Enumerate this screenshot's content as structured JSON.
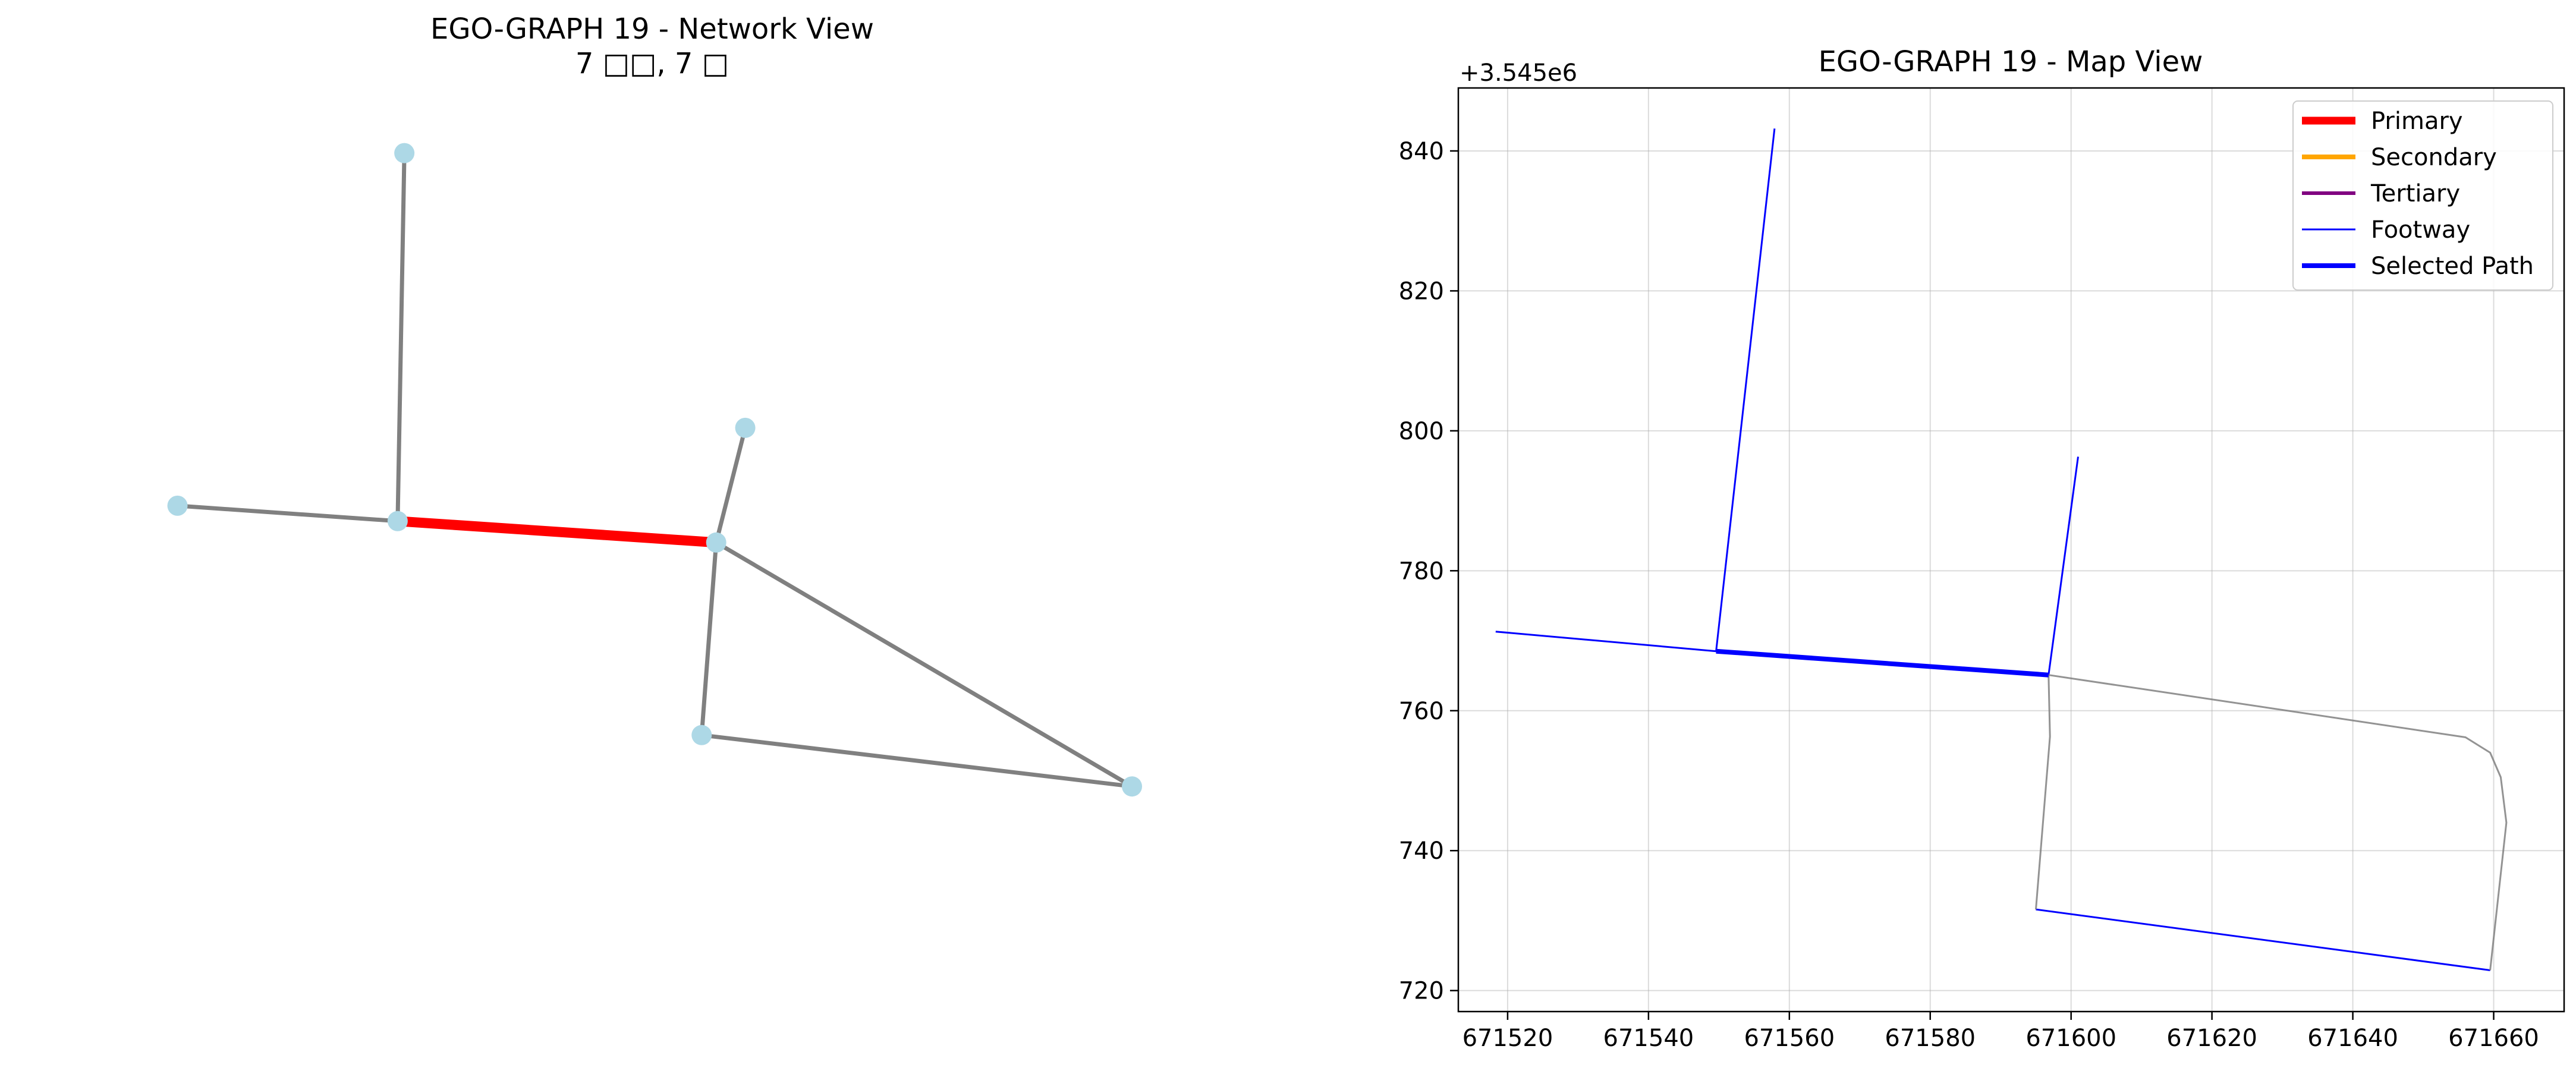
{
  "chart_data": [
    {
      "type": "network",
      "title": "EGO-GRAPH 19 - Network View",
      "subtitle": "7 □□, 7 □",
      "nodes": [
        {
          "id": "n1",
          "x": 0.079,
          "y": 0.548
        },
        {
          "id": "n2",
          "x": 0.276,
          "y": 0.53
        },
        {
          "id": "n3",
          "x": 0.282,
          "y": 0.96
        },
        {
          "id": "n4",
          "x": 0.561,
          "y": 0.505
        },
        {
          "id": "n5",
          "x": 0.587,
          "y": 0.639
        },
        {
          "id": "n6",
          "x": 0.548,
          "y": 0.28
        },
        {
          "id": "n7",
          "x": 0.933,
          "y": 0.22
        }
      ],
      "edges": [
        {
          "from": "n1",
          "to": "n2",
          "highlight": false
        },
        {
          "from": "n2",
          "to": "n3",
          "highlight": false
        },
        {
          "from": "n2",
          "to": "n4",
          "highlight": true
        },
        {
          "from": "n4",
          "to": "n5",
          "highlight": false
        },
        {
          "from": "n4",
          "to": "n6",
          "highlight": false
        },
        {
          "from": "n4",
          "to": "n7",
          "highlight": false
        },
        {
          "from": "n6",
          "to": "n7",
          "highlight": false
        }
      ],
      "node_color": "#add8e6",
      "edge_color": "#808080",
      "highlight_color": "#ff0000"
    },
    {
      "type": "line",
      "title": "EGO-GRAPH 19 - Map View",
      "offset_label": "+3.545e6",
      "xlim": [
        671513,
        671670
      ],
      "ylim": [
        717,
        849
      ],
      "xticks": [
        671520,
        671540,
        671560,
        671580,
        671600,
        671620,
        671640,
        671660
      ],
      "yticks": [
        720,
        740,
        760,
        780,
        800,
        820,
        840
      ],
      "xtick_labels": [
        "671520",
        "671540",
        "671560",
        "671580",
        "671600",
        "671620",
        "671640",
        "671660"
      ],
      "ytick_labels": [
        "720",
        "740",
        "760",
        "780",
        "800",
        "820",
        "840"
      ],
      "grid": true,
      "legend_position": "top-right",
      "legend": [
        {
          "label": "Primary",
          "color": "#ff0000",
          "width": 4
        },
        {
          "label": "Secondary",
          "color": "#ffa500",
          "width": 3
        },
        {
          "label": "Tertiary",
          "color": "#800080",
          "width": 2
        },
        {
          "label": "Footway",
          "color": "#0000ff",
          "width": 1
        },
        {
          "label": "Selected Path",
          "color": "#0000ff",
          "width": 3
        }
      ],
      "series": [
        {
          "kind": "footway",
          "color": "#0000ff",
          "width": 1,
          "points": [
            [
              671518.3,
              771.3
            ],
            [
              671549.6,
              768.5
            ]
          ]
        },
        {
          "kind": "footway",
          "color": "#0000ff",
          "width": 1,
          "points": [
            [
              671549.6,
              768.5
            ],
            [
              671557.9,
              843.2
            ]
          ]
        },
        {
          "kind": "footway",
          "color": "#0000ff",
          "width": 1,
          "points": [
            [
              671596.8,
              765.1
            ],
            [
              671601.0,
              796.3
            ]
          ]
        },
        {
          "kind": "footway",
          "color": "#0000ff",
          "width": 1,
          "points": [
            [
              671595.0,
              731.6
            ],
            [
              671659.5,
              722.9
            ]
          ]
        },
        {
          "kind": "other",
          "color": "#808080",
          "width": 1,
          "points": [
            [
              671596.8,
              765.1
            ],
            [
              671656.0,
              756.2
            ],
            [
              671659.5,
              754.0
            ],
            [
              671661.0,
              750.5
            ],
            [
              671661.8,
              744.0
            ],
            [
              671659.5,
              722.9
            ]
          ]
        },
        {
          "kind": "other",
          "color": "#808080",
          "width": 1,
          "points": [
            [
              671596.8,
              765.1
            ],
            [
              671597.0,
              756.3
            ],
            [
              671595.0,
              731.6
            ]
          ]
        },
        {
          "kind": "selected",
          "color": "#0000ff",
          "width": 3,
          "points": [
            [
              671549.6,
              768.5
            ],
            [
              671596.8,
              765.1
            ]
          ]
        }
      ]
    }
  ]
}
